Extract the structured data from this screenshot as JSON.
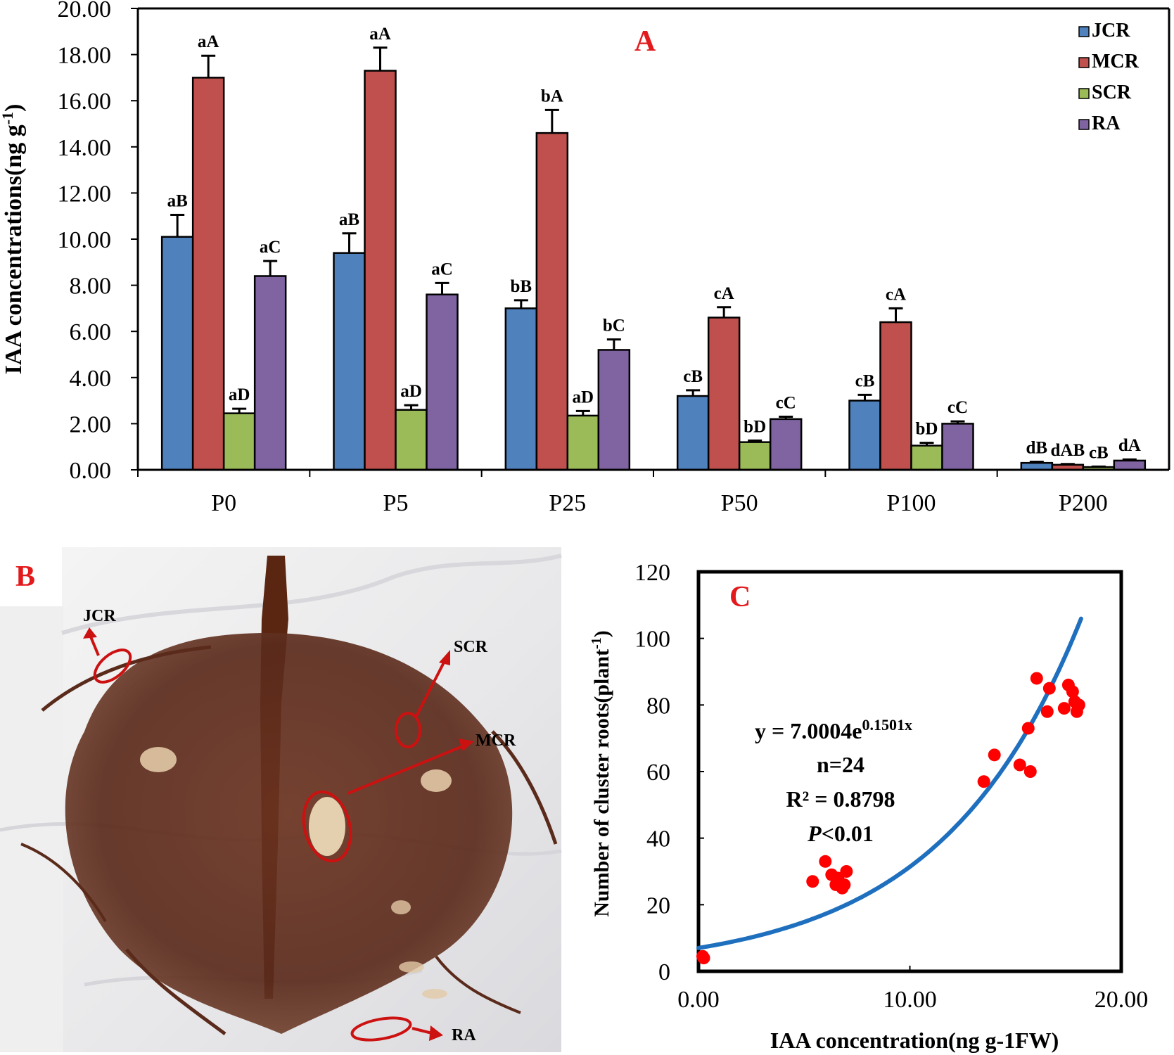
{
  "chart_data": [
    {
      "panel": "A",
      "type": "bar",
      "title": "A",
      "ylabel": "IAA concentrations(ng g",
      "ylabel_sup": "-1",
      "ylabel_end": ")",
      "ylim": [
        0,
        20
      ],
      "yticks": [
        "0.00",
        "2.00",
        "4.00",
        "6.00",
        "8.00",
        "10.00",
        "12.00",
        "14.00",
        "16.00",
        "18.00",
        "20.00"
      ],
      "categories": [
        "P0",
        "P5",
        "P25",
        "P50",
        "P100",
        "P200"
      ],
      "legend_position": "top-right",
      "series": [
        {
          "name": "JCR",
          "color": "#4f81bd",
          "values": [
            10.1,
            9.4,
            7.0,
            3.2,
            3.0,
            0.3
          ],
          "errors": [
            0.95,
            0.85,
            0.35,
            0.25,
            0.25,
            0.05
          ],
          "labels": [
            "aB",
            "aB",
            "bB",
            "cB",
            "cB",
            "dB"
          ]
        },
        {
          "name": "MCR",
          "color": "#c0504d",
          "values": [
            17.0,
            17.3,
            14.6,
            6.6,
            6.4,
            0.22
          ],
          "errors": [
            0.95,
            1.0,
            1.0,
            0.45,
            0.6,
            0.03
          ],
          "labels": [
            "aA",
            "aA",
            "bA",
            "cA",
            "cA",
            "dAB"
          ]
        },
        {
          "name": "SCR",
          "color": "#9bbb59",
          "values": [
            2.45,
            2.6,
            2.35,
            1.2,
            1.05,
            0.12
          ],
          "errors": [
            0.2,
            0.2,
            0.2,
            0.07,
            0.12,
            0.02
          ],
          "labels": [
            "aD",
            "aD",
            "aD",
            "bD",
            "bD",
            "cB"
          ]
        },
        {
          "name": "RA",
          "color": "#8064a2",
          "values": [
            8.4,
            7.6,
            5.2,
            2.2,
            2.0,
            0.4
          ],
          "errors": [
            0.65,
            0.5,
            0.45,
            0.1,
            0.1,
            0.05
          ],
          "labels": [
            "aC",
            "aC",
            "bC",
            "cC",
            "cC",
            "dA"
          ]
        }
      ]
    },
    {
      "panel": "C",
      "type": "scatter",
      "title": "C",
      "xlabel": "IAA concentration(ng g-1FW)",
      "ylabel": "Number of cluster roots(plant",
      "ylabel_sup": "-1",
      "ylabel_end": ")",
      "xlim": [
        0,
        20
      ],
      "ylim": [
        0,
        120
      ],
      "xticks": [
        "0.00",
        "10.00",
        "20.00"
      ],
      "yticks": [
        "0",
        "20",
        "40",
        "60",
        "80",
        "100",
        "120"
      ],
      "points_x": [
        0.2,
        0.25,
        5.4,
        6.0,
        6.3,
        6.5,
        6.6,
        6.8,
        6.9,
        7.0,
        13.5,
        14.0,
        15.2,
        15.6,
        15.7,
        16.0,
        16.5,
        16.6,
        17.3,
        17.5,
        17.7,
        17.8,
        18.0,
        17.9
      ],
      "points_y": [
        4.5,
        4.0,
        27,
        33,
        29,
        26,
        28,
        25,
        26,
        30,
        57,
        65,
        62,
        73,
        60,
        88,
        78,
        85,
        79,
        86,
        84,
        81,
        80,
        78
      ],
      "fit": {
        "type": "exponential",
        "a": 7.0004,
        "b": 0.1501,
        "x_range": [
          0,
          18.1
        ],
        "color": "#1f6fbf"
      },
      "equation": "y = 7.0004e",
      "equation_exp": "0.1501x",
      "n_text": "n=24",
      "r2_text": "R² = 0.8798",
      "p_italic": "P",
      "p_rest": "<0.01",
      "point_color": "#ff0000"
    }
  ],
  "photo": {
    "panel_label": "B",
    "labels": [
      "JCR",
      "SCR",
      "MCR",
      "RA"
    ]
  }
}
